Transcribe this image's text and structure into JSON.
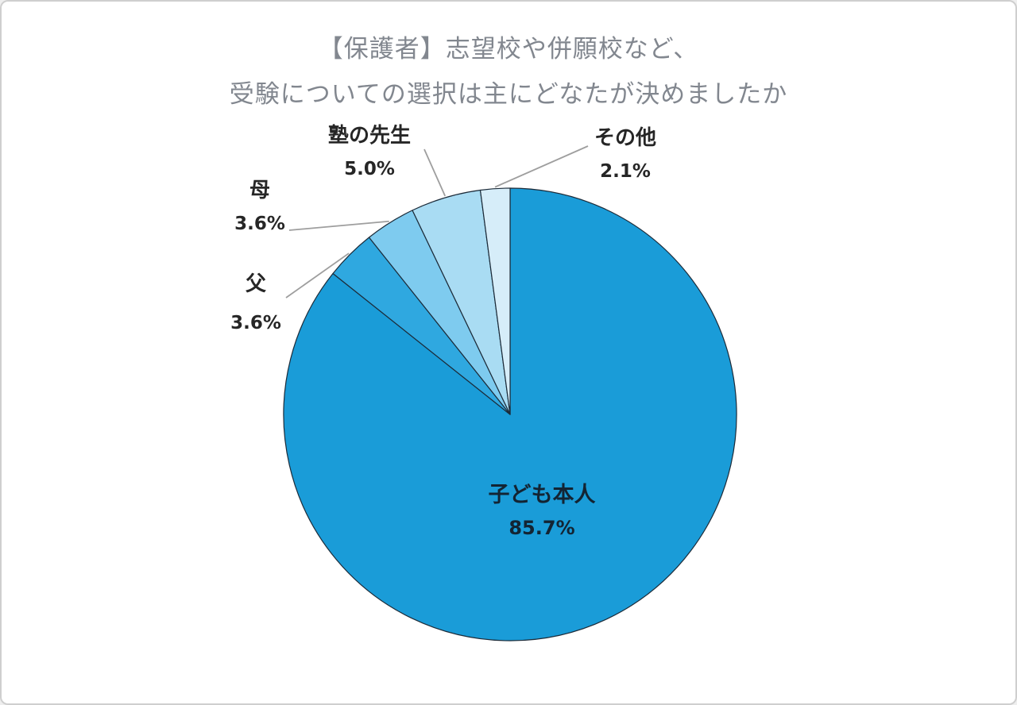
{
  "title": {
    "line1": "【保護者】志望校や併願校など、",
    "line2": "受験についての選択は主にどなたが決めましたか"
  },
  "chart_data": {
    "type": "pie",
    "title": "【保護者】志望校や併願校など、受験についての選択は主にどなたが決めましたか",
    "unit": "%",
    "direction": "clockwise",
    "start_angle_deg": 0,
    "legend": "none",
    "stroke_color": "#1C2B39",
    "leader_line_color": "#9E9E9E",
    "slices": [
      {
        "label": "子ども本人",
        "value": 85.7,
        "pct_text": "85.7%",
        "color": "#1A9CD8"
      },
      {
        "label": "父",
        "value": 3.6,
        "pct_text": "3.6%",
        "color": "#2FA8E0"
      },
      {
        "label": "母",
        "value": 3.6,
        "pct_text": "3.6%",
        "color": "#7ECBEF"
      },
      {
        "label": "塾の先生",
        "value": 5.0,
        "pct_text": "5.0%",
        "color": "#A9DCF3"
      },
      {
        "label": "その他",
        "value": 2.1,
        "pct_text": "2.1%",
        "color": "#D6EDF9"
      }
    ]
  }
}
